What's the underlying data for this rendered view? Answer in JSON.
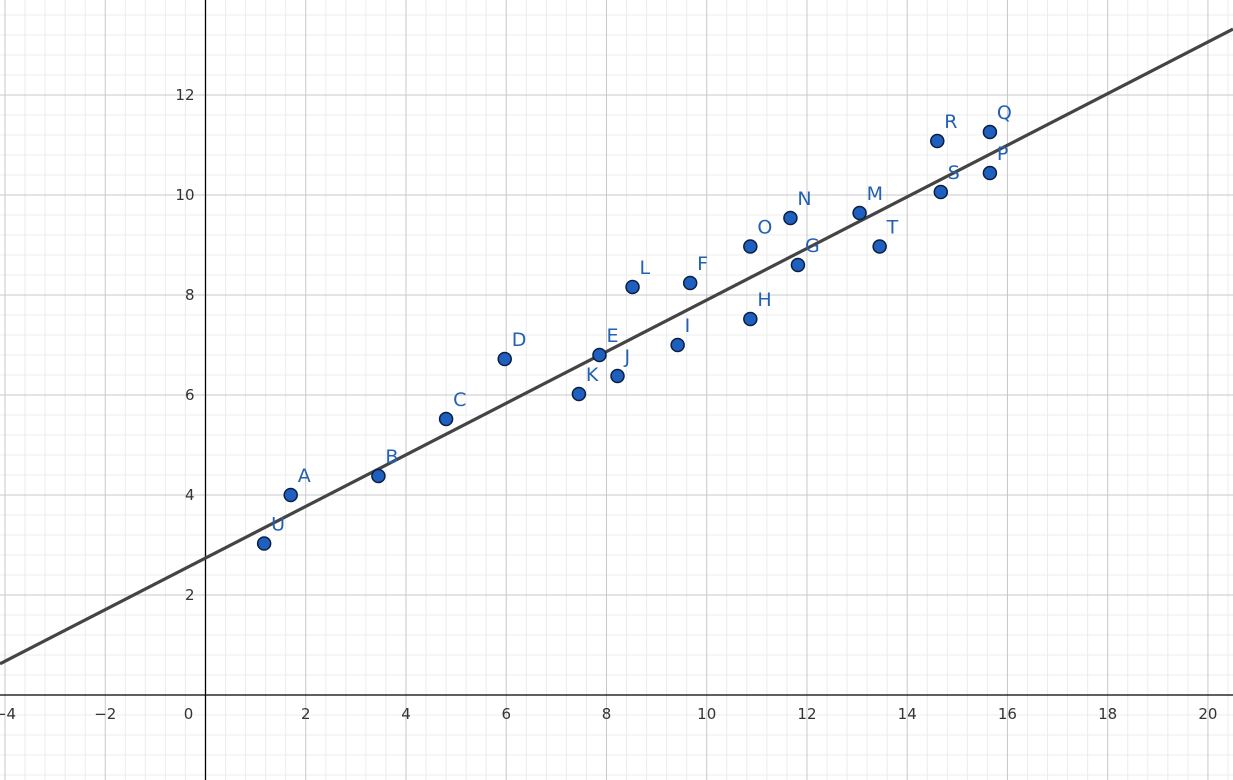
{
  "chart_data": {
    "type": "scatter",
    "title": "",
    "xlabel": "",
    "ylabel": "",
    "xlim": [
      -4.1,
      20.5
    ],
    "ylim": [
      -1.7,
      13.9
    ],
    "grid": true,
    "x_ticks": [
      "-4",
      "-2",
      "0",
      "2",
      "4",
      "6",
      "8",
      "10",
      "12",
      "14",
      "16",
      "18",
      "20"
    ],
    "y_ticks": [
      "2",
      "4",
      "6",
      "8",
      "10",
      "12"
    ],
    "points": [
      {
        "label": "A",
        "x": 1.7,
        "y": 4.0
      },
      {
        "label": "B",
        "x": 3.45,
        "y": 4.38
      },
      {
        "label": "C",
        "x": 4.8,
        "y": 5.52
      },
      {
        "label": "D",
        "x": 5.97,
        "y": 6.72
      },
      {
        "label": "E",
        "x": 7.86,
        "y": 6.8
      },
      {
        "label": "F",
        "x": 9.67,
        "y": 8.24
      },
      {
        "label": "G",
        "x": 11.82,
        "y": 8.6
      },
      {
        "label": "H",
        "x": 10.87,
        "y": 7.52
      },
      {
        "label": "I",
        "x": 9.42,
        "y": 7.0
      },
      {
        "label": "J",
        "x": 8.22,
        "y": 6.38
      },
      {
        "label": "K",
        "x": 7.45,
        "y": 6.02
      },
      {
        "label": "L",
        "x": 8.52,
        "y": 8.16
      },
      {
        "label": "M",
        "x": 13.05,
        "y": 9.64
      },
      {
        "label": "N",
        "x": 11.67,
        "y": 9.54
      },
      {
        "label": "O",
        "x": 10.87,
        "y": 8.97
      },
      {
        "label": "P",
        "x": 15.65,
        "y": 10.44
      },
      {
        "label": "Q",
        "x": 15.65,
        "y": 11.26
      },
      {
        "label": "R",
        "x": 14.6,
        "y": 11.08
      },
      {
        "label": "S",
        "x": 14.67,
        "y": 10.06
      },
      {
        "label": "T",
        "x": 13.45,
        "y": 8.97
      },
      {
        "label": "U",
        "x": 1.17,
        "y": 3.03
      }
    ],
    "trend_line": {
      "slope": 0.516,
      "intercept": 2.74
    },
    "colors": {
      "point_fill": "#1f5fbf",
      "point_stroke": "#0a1f3f",
      "label": "#2361b3",
      "line": "#444444",
      "axis": "#000000",
      "major_grid": "#c8c8c8",
      "minor_grid": "#ececec"
    }
  }
}
